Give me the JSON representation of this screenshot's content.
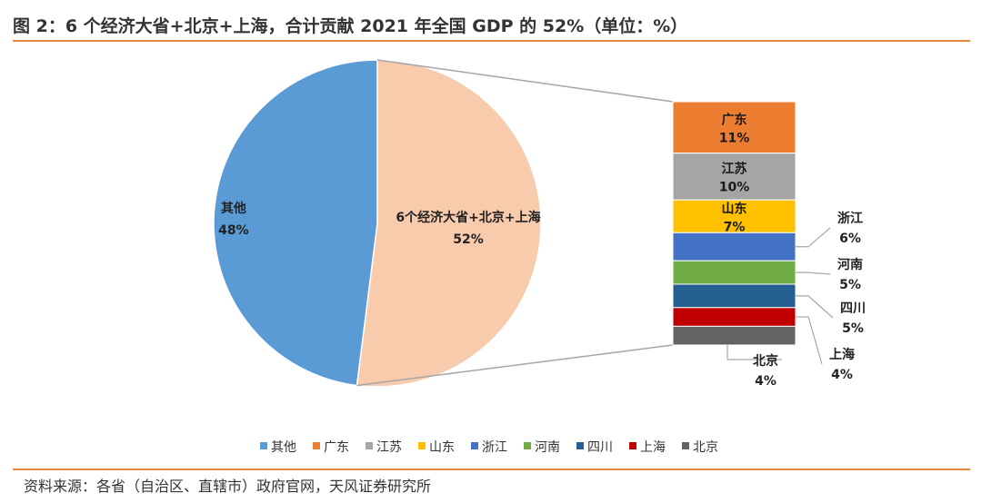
{
  "figure": {
    "title": "图 2：6 个经济大省+北京+上海，合计贡献 2021 年全国 GDP 的 52%（单位：%）",
    "source": "资料来源：各省（自治区、直辖市）政府官网，天风证券研究所"
  },
  "chart_data": {
    "type": "pie",
    "subtype": "bar-of-pie",
    "unit": "%",
    "pie": {
      "slices": [
        {
          "name": "其他",
          "value": 48,
          "label": "48%",
          "color": "#5b9bd5"
        },
        {
          "name": "6个经济大省+北京+上海",
          "value": 52,
          "label": "52%",
          "color": "#f8cbad"
        }
      ]
    },
    "bar": {
      "breakdown_of": "6个经济大省+北京+上海",
      "segments": [
        {
          "name": "广东",
          "value": 11,
          "label": "11%",
          "color": "#ed7d31"
        },
        {
          "name": "江苏",
          "value": 10,
          "label": "10%",
          "color": "#a5a5a5"
        },
        {
          "name": "山东",
          "value": 7,
          "label": "7%",
          "color": "#ffc000"
        },
        {
          "name": "浙江",
          "value": 6,
          "label": "6%",
          "color": "#4472c4"
        },
        {
          "name": "河南",
          "value": 5,
          "label": "5%",
          "color": "#70ad47"
        },
        {
          "name": "四川",
          "value": 5,
          "label": "5%",
          "color": "#255e91"
        },
        {
          "name": "上海",
          "value": 4,
          "label": "4%",
          "color": "#c00000"
        },
        {
          "name": "北京",
          "value": 4,
          "label": "4%",
          "color": "#636363"
        }
      ]
    },
    "legend": {
      "position": "bottom",
      "entries": [
        {
          "name": "其他",
          "color": "#5b9bd5"
        },
        {
          "name": "广东",
          "color": "#ed7d31"
        },
        {
          "name": "江苏",
          "color": "#a5a5a5"
        },
        {
          "name": "山东",
          "color": "#ffc000"
        },
        {
          "name": "浙江",
          "color": "#4472c4"
        },
        {
          "name": "河南",
          "color": "#70ad47"
        },
        {
          "name": "四川",
          "color": "#255e91"
        },
        {
          "name": "上海",
          "color": "#c00000"
        },
        {
          "name": "北京",
          "color": "#636363"
        }
      ]
    }
  }
}
